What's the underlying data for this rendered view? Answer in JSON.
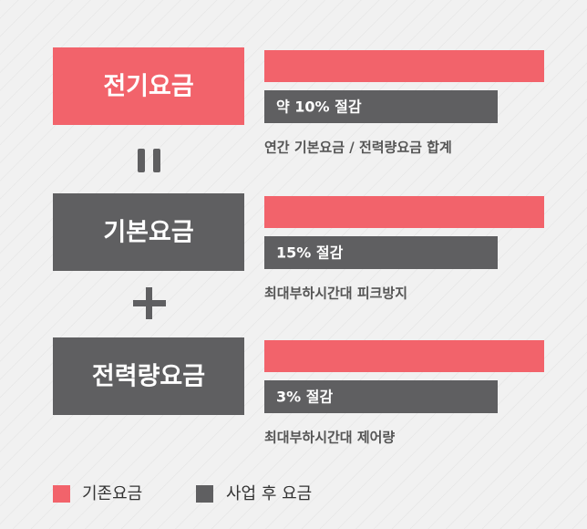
{
  "rows": [
    {
      "label": "전기요금",
      "saving": "약 10% 절감",
      "note": "연간 기본요금 / 전력량요금 합계"
    },
    {
      "label": "기본요금",
      "saving": "15% 절감",
      "note": "최대부하시간대 피크방지"
    },
    {
      "label": "전력량요금",
      "saving": "3% 절감",
      "note": "최대부하시간대 제어량"
    }
  ],
  "legend": [
    "기존요금",
    "사업 후 요금"
  ]
}
